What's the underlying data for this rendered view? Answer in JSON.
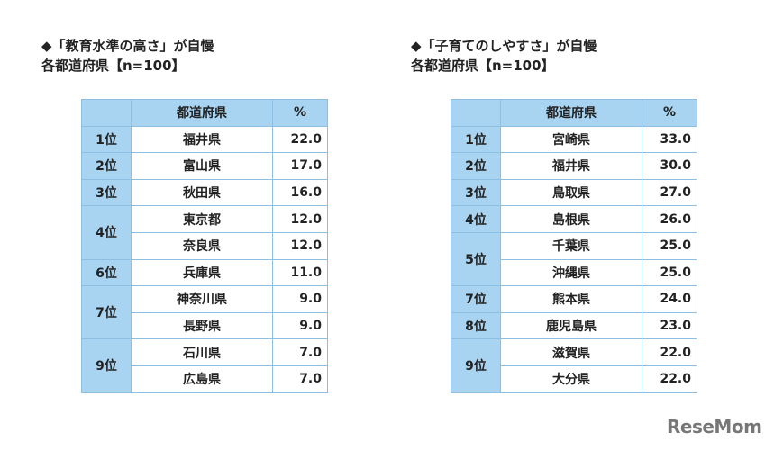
{
  "left": {
    "title1": "◆「教育水準の高さ」が自慢",
    "title2": "各都道府県【n=100】",
    "header": {
      "pref": "都道府県",
      "pct": "%"
    },
    "rows": [
      {
        "rank": "1位",
        "pref": "福井県",
        "pct": "22.0",
        "span": 1
      },
      {
        "rank": "2位",
        "pref": "富山県",
        "pct": "17.0",
        "span": 1
      },
      {
        "rank": "3位",
        "pref": "秋田県",
        "pct": "16.0",
        "span": 1
      },
      {
        "rank": "4位",
        "pref": "東京都",
        "pct": "12.0",
        "span": 2
      },
      {
        "rank": "",
        "pref": "奈良県",
        "pct": "12.0",
        "span": 0
      },
      {
        "rank": "6位",
        "pref": "兵庫県",
        "pct": "11.0",
        "span": 1
      },
      {
        "rank": "7位",
        "pref": "神奈川県",
        "pct": "9.0",
        "span": 2
      },
      {
        "rank": "",
        "pref": "長野県",
        "pct": "9.0",
        "span": 0
      },
      {
        "rank": "9位",
        "pref": "石川県",
        "pct": "7.0",
        "span": 2
      },
      {
        "rank": "",
        "pref": "広島県",
        "pct": "7.0",
        "span": 0
      }
    ]
  },
  "right": {
    "title1": "◆「子育てのしやすさ」が自慢",
    "title2": "各都道府県【n=100】",
    "header": {
      "pref": "都道府県",
      "pct": "%"
    },
    "rows": [
      {
        "rank": "1位",
        "pref": "宮崎県",
        "pct": "33.0",
        "span": 1
      },
      {
        "rank": "2位",
        "pref": "福井県",
        "pct": "30.0",
        "span": 1
      },
      {
        "rank": "3位",
        "pref": "鳥取県",
        "pct": "27.0",
        "span": 1
      },
      {
        "rank": "4位",
        "pref": "島根県",
        "pct": "26.0",
        "span": 1
      },
      {
        "rank": "5位",
        "pref": "千葉県",
        "pct": "25.0",
        "span": 2
      },
      {
        "rank": "",
        "pref": "沖縄県",
        "pct": "25.0",
        "span": 0
      },
      {
        "rank": "7位",
        "pref": "熊本県",
        "pct": "24.0",
        "span": 1
      },
      {
        "rank": "8位",
        "pref": "鹿児島県",
        "pct": "23.0",
        "span": 1
      },
      {
        "rank": "9位",
        "pref": "滋賀県",
        "pct": "22.0",
        "span": 2
      },
      {
        "rank": "",
        "pref": "大分県",
        "pct": "22.0",
        "span": 0
      }
    ]
  },
  "logo": "ReseMom"
}
